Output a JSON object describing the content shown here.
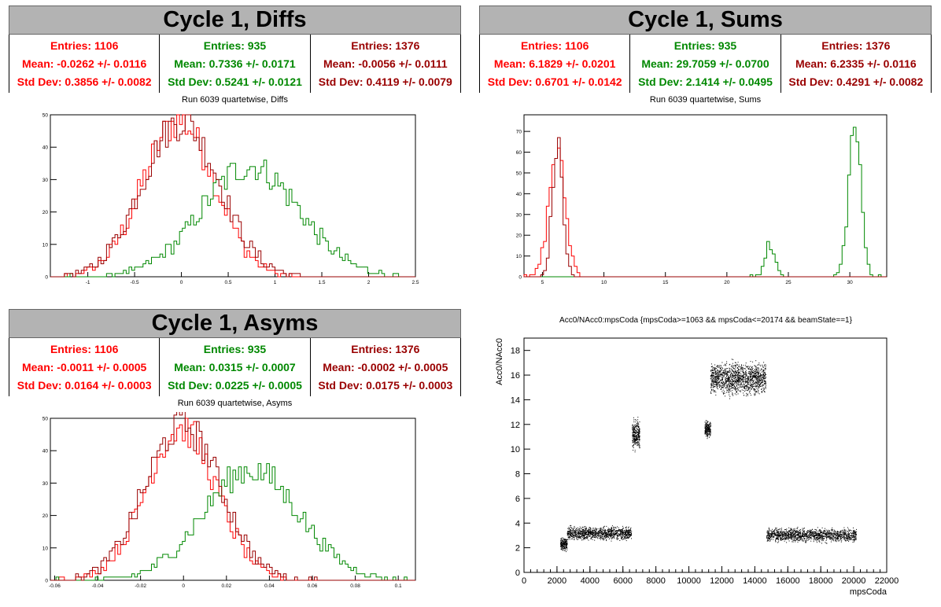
{
  "colors": {
    "red": "#ff0000",
    "green": "#008800",
    "darkred": "#990000"
  },
  "panels": [
    {
      "id": "diffs",
      "title": "Cycle 1, Diffs",
      "subtitle": "Run 6039 quartetwise, Diffs",
      "stats": [
        {
          "entries": "Entries: 1106",
          "mean": "Mean: -0.0262 +/- 0.0116",
          "stddev": "Std Dev: 0.3856 +/- 0.0082",
          "color": "#ff0000"
        },
        {
          "entries": "Entries: 935",
          "mean": "Mean: 0.7336 +/- 0.0171",
          "stddev": "Std Dev: 0.5241 +/- 0.0121",
          "color": "#008800"
        },
        {
          "entries": "Entries: 1376",
          "mean": "Mean: -0.0056 +/- 0.0111",
          "stddev": "Std Dev: 0.4119 +/- 0.0079",
          "color": "#990000"
        }
      ]
    },
    {
      "id": "sums",
      "title": "Cycle 1, Sums",
      "subtitle": "Run 6039 quartetwise, Sums",
      "stats": [
        {
          "entries": "Entries: 1106",
          "mean": "Mean: 6.1829 +/- 0.0201",
          "stddev": "Std Dev: 0.6701 +/- 0.0142",
          "color": "#ff0000"
        },
        {
          "entries": "Entries: 935",
          "mean": "Mean: 29.7059 +/- 0.0700",
          "stddev": "Std Dev: 2.1414 +/- 0.0495",
          "color": "#008800"
        },
        {
          "entries": "Entries: 1376",
          "mean": "Mean: 6.2335 +/- 0.0116",
          "stddev": "Std Dev: 0.4291 +/- 0.0082",
          "color": "#990000"
        }
      ]
    },
    {
      "id": "asyms",
      "title": "Cycle 1, Asyms",
      "subtitle": "Run 6039 quartetwise, Asyms",
      "stats": [
        {
          "entries": "Entries: 1106",
          "mean": "Mean: -0.0011 +/- 0.0005",
          "stddev": "Std Dev: 0.0164 +/- 0.0003",
          "color": "#ff0000"
        },
        {
          "entries": "Entries: 935",
          "mean": "Mean: 0.0315 +/- 0.0007",
          "stddev": "Std Dev: 0.0225 +/- 0.0005",
          "color": "#008800"
        },
        {
          "entries": "Entries: 1376",
          "mean": "Mean: -0.0002 +/- 0.0005",
          "stddev": "Std Dev: 0.0175 +/- 0.0003",
          "color": "#990000"
        }
      ]
    }
  ],
  "chart_data": [
    {
      "type": "histogram",
      "id": "diffs",
      "xlim": [
        -1.4,
        2.5
      ],
      "ylim": [
        0,
        50
      ],
      "xticks": [
        -1,
        -0.5,
        0,
        0.5,
        1,
        1.5,
        2,
        2.5
      ],
      "yticks": [
        0,
        10,
        20,
        30,
        40,
        50
      ],
      "series": [
        {
          "color": "#ff0000",
          "entries": 1106,
          "mean": -0.0262,
          "std": 0.3856,
          "peak": 48
        },
        {
          "color": "#008800",
          "entries": 935,
          "mean": 0.7336,
          "std": 0.5241,
          "peak": 34
        },
        {
          "color": "#990000",
          "entries": 1376,
          "mean": -0.0056,
          "std": 0.4119,
          "peak": 48
        }
      ]
    },
    {
      "type": "histogram",
      "id": "sums",
      "xlim": [
        3.5,
        33
      ],
      "ylim": [
        0,
        78
      ],
      "xticks": [
        5,
        10,
        15,
        20,
        25,
        30
      ],
      "yticks": [
        0,
        10,
        20,
        30,
        40,
        50,
        60,
        70
      ],
      "series": [
        {
          "color": "#ff0000",
          "entries": 1106,
          "mean": 6.1829,
          "std": 0.6701,
          "peak": 60
        },
        {
          "color": "#008800",
          "entries": 935,
          "components": [
            {
              "mean": 23.5,
              "std": 0.4,
              "peak": 15
            },
            {
              "mean": 30.4,
              "std": 0.5,
              "peak": 73
            }
          ]
        },
        {
          "color": "#990000",
          "entries": 1376,
          "mean": 6.2335,
          "std": 0.4291,
          "peak": 63
        }
      ]
    },
    {
      "type": "histogram",
      "id": "asyms",
      "xlim": [
        -0.062,
        0.108
      ],
      "ylim": [
        0,
        50
      ],
      "xticks": [
        -0.06,
        -0.04,
        -0.02,
        0,
        0.02,
        0.04,
        0.06,
        0.08,
        0.1
      ],
      "yticks": [
        0,
        10,
        20,
        30,
        40,
        50
      ],
      "series": [
        {
          "color": "#ff0000",
          "entries": 1106,
          "mean": -0.0011,
          "std": 0.0164,
          "peak": 47
        },
        {
          "color": "#008800",
          "entries": 935,
          "mean": 0.0315,
          "std": 0.0225,
          "peak": 34
        },
        {
          "color": "#990000",
          "entries": 1376,
          "mean": -0.0002,
          "std": 0.0175,
          "peak": 48
        }
      ]
    },
    {
      "type": "scatter",
      "id": "acc0",
      "title": "Acc0/NAcc0:mpsCoda {mpsCoda>=1063 && mpsCoda<=20174 && beamState==1}",
      "xlabel": "mpsCoda",
      "ylabel": "Acc0/NAcc0",
      "xlim": [
        0,
        22000
      ],
      "ylim": [
        0,
        19
      ],
      "xticks": [
        0,
        2000,
        4000,
        6000,
        8000,
        10000,
        12000,
        14000,
        16000,
        18000,
        20000,
        22000
      ],
      "yticks": [
        0,
        2,
        4,
        6,
        8,
        10,
        12,
        14,
        16,
        18
      ],
      "clusters": [
        {
          "x": [
            2200,
            2600
          ],
          "y": [
            1.6,
            3.0
          ]
        },
        {
          "x": [
            2600,
            6500
          ],
          "y": [
            2.5,
            3.9
          ]
        },
        {
          "x": [
            6550,
            7000
          ],
          "y": [
            9.5,
            12.8
          ]
        },
        {
          "x": [
            10950,
            11300
          ],
          "y": [
            10.8,
            12.5
          ]
        },
        {
          "x": [
            11300,
            14650
          ],
          "y": [
            14.0,
            17.5
          ]
        },
        {
          "x": [
            14700,
            20150
          ],
          "y": [
            2.3,
            3.8
          ]
        }
      ]
    }
  ]
}
